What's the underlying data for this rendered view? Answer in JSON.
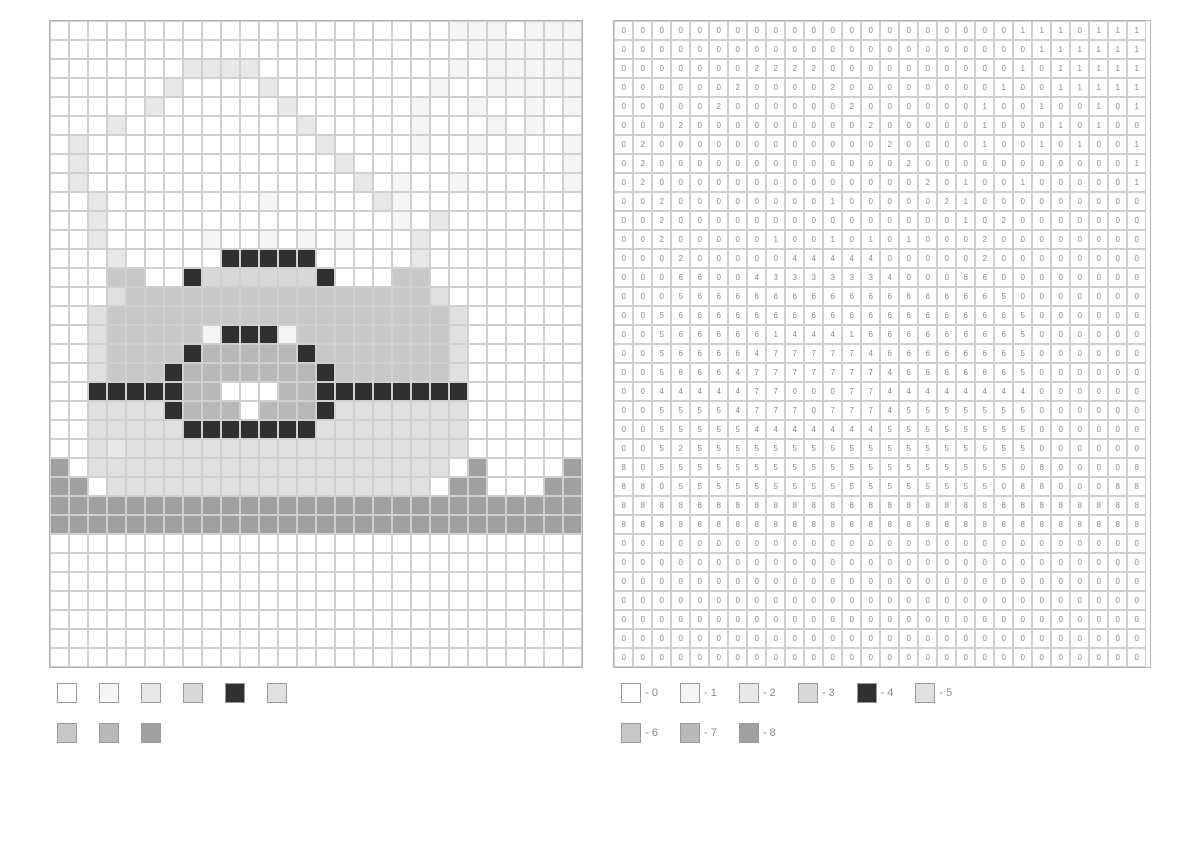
{
  "grid_config": {
    "cols": 28,
    "rows": 34,
    "cell_size": 19,
    "border_color": "#d0d0d0",
    "outer_border_color": "#b0b0b0"
  },
  "palette": {
    "0": "#ffffff",
    "1": "#f5f5f5",
    "2": "#e8e8e8",
    "3": "#d8d8d8",
    "4": "#303030",
    "5": "#e0e0e0",
    "6": "#c8c8c8",
    "7": "#b8b8b8",
    "8": "#a0a0a0"
  },
  "number_grid": [
    [
      0,
      0,
      0,
      0,
      0,
      0,
      0,
      0,
      0,
      0,
      0,
      0,
      0,
      0,
      0,
      0,
      0,
      0,
      0,
      0,
      0,
      1,
      1,
      1,
      0,
      1,
      1,
      1
    ],
    [
      0,
      0,
      0,
      0,
      0,
      0,
      0,
      0,
      0,
      0,
      0,
      0,
      0,
      0,
      0,
      0,
      0,
      0,
      0,
      0,
      0,
      0,
      1,
      1,
      1,
      1,
      1,
      1
    ],
    [
      0,
      0,
      0,
      0,
      0,
      0,
      0,
      2,
      2,
      2,
      2,
      0,
      0,
      0,
      0,
      0,
      0,
      0,
      0,
      0,
      0,
      1,
      0,
      1,
      1,
      1,
      1,
      1
    ],
    [
      0,
      0,
      0,
      0,
      0,
      0,
      2,
      0,
      0,
      0,
      0,
      2,
      0,
      0,
      0,
      0,
      0,
      0,
      0,
      0,
      1,
      0,
      0,
      1,
      1,
      1,
      1,
      1
    ],
    [
      0,
      0,
      0,
      0,
      0,
      2,
      0,
      0,
      0,
      0,
      0,
      0,
      2,
      0,
      0,
      0,
      0,
      0,
      0,
      1,
      0,
      0,
      1,
      0,
      0,
      1,
      0,
      1
    ],
    [
      0,
      0,
      0,
      2,
      0,
      0,
      0,
      0,
      0,
      0,
      0,
      0,
      0,
      2,
      0,
      0,
      0,
      0,
      0,
      1,
      0,
      0,
      0,
      1,
      0,
      1,
      0,
      0
    ],
    [
      0,
      2,
      0,
      0,
      0,
      0,
      0,
      0,
      0,
      0,
      0,
      0,
      0,
      0,
      2,
      0,
      0,
      0,
      0,
      1,
      0,
      0,
      1,
      0,
      1,
      0,
      0,
      1
    ],
    [
      0,
      2,
      0,
      0,
      0,
      0,
      0,
      0,
      0,
      0,
      0,
      0,
      0,
      0,
      0,
      2,
      0,
      0,
      0,
      0,
      0,
      0,
      0,
      0,
      0,
      0,
      0,
      1
    ],
    [
      0,
      2,
      0,
      0,
      0,
      0,
      0,
      0,
      0,
      0,
      0,
      0,
      0,
      0,
      0,
      0,
      2,
      0,
      1,
      0,
      0,
      1,
      0,
      0,
      0,
      0,
      0,
      1
    ],
    [
      0,
      0,
      2,
      0,
      0,
      0,
      0,
      0,
      0,
      0,
      0,
      1,
      0,
      0,
      0,
      0,
      0,
      2,
      1,
      0,
      0,
      0,
      0,
      0,
      0,
      0,
      0,
      0
    ],
    [
      0,
      0,
      2,
      0,
      0,
      0,
      0,
      0,
      0,
      0,
      0,
      0,
      0,
      0,
      0,
      0,
      0,
      0,
      1,
      0,
      2,
      0,
      0,
      0,
      0,
      0,
      0,
      0
    ],
    [
      0,
      0,
      2,
      0,
      0,
      0,
      0,
      0,
      1,
      0,
      0,
      1,
      0,
      1,
      0,
      1,
      0,
      0,
      0,
      2,
      0,
      0,
      0,
      0,
      0,
      0,
      0,
      0
    ],
    [
      0,
      0,
      0,
      2,
      0,
      0,
      0,
      0,
      0,
      4,
      4,
      4,
      4,
      4,
      0,
      0,
      0,
      0,
      0,
      2,
      0,
      0,
      0,
      0,
      0,
      0,
      0,
      0
    ],
    [
      0,
      0,
      0,
      6,
      6,
      0,
      0,
      4,
      3,
      3,
      3,
      3,
      3,
      3,
      4,
      0,
      0,
      0,
      6,
      6,
      0,
      0,
      0,
      0,
      0,
      0,
      0,
      0
    ],
    [
      0,
      0,
      0,
      5,
      6,
      6,
      6,
      6,
      6,
      6,
      6,
      6,
      6,
      6,
      6,
      6,
      6,
      6,
      6,
      6,
      5,
      0,
      0,
      0,
      0,
      0,
      0,
      0
    ],
    [
      0,
      0,
      5,
      6,
      6,
      6,
      6,
      6,
      6,
      6,
      6,
      6,
      6,
      6,
      6,
      6,
      6,
      6,
      6,
      6,
      6,
      5,
      0,
      0,
      0,
      0,
      0,
      0
    ],
    [
      0,
      0,
      5,
      6,
      6,
      6,
      6,
      6,
      1,
      4,
      4,
      4,
      1,
      6,
      6,
      6,
      6,
      6,
      6,
      6,
      6,
      5,
      0,
      0,
      0,
      0,
      0,
      0
    ],
    [
      0,
      0,
      5,
      6,
      6,
      6,
      6,
      4,
      7,
      7,
      7,
      7,
      7,
      4,
      6,
      6,
      6,
      6,
      6,
      6,
      6,
      5,
      0,
      0,
      0,
      0,
      0,
      0
    ],
    [
      0,
      0,
      5,
      6,
      6,
      6,
      4,
      7,
      7,
      7,
      7,
      7,
      7,
      7,
      4,
      6,
      6,
      6,
      6,
      6,
      6,
      5,
      0,
      0,
      0,
      0,
      0,
      0
    ],
    [
      0,
      0,
      4,
      4,
      4,
      4,
      4,
      7,
      7,
      0,
      0,
      0,
      7,
      7,
      4,
      4,
      4,
      4,
      4,
      4,
      4,
      4,
      0,
      0,
      0,
      0,
      0,
      0
    ],
    [
      0,
      0,
      5,
      5,
      5,
      5,
      4,
      7,
      7,
      7,
      0,
      7,
      7,
      7,
      4,
      5,
      5,
      5,
      5,
      5,
      5,
      5,
      0,
      0,
      0,
      0,
      0,
      0
    ],
    [
      0,
      0,
      5,
      5,
      5,
      5,
      5,
      4,
      4,
      4,
      4,
      4,
      4,
      4,
      5,
      5,
      5,
      5,
      5,
      5,
      5,
      5,
      0,
      0,
      0,
      0,
      0,
      0
    ],
    [
      0,
      0,
      5,
      2,
      5,
      5,
      5,
      5,
      5,
      5,
      5,
      5,
      5,
      5,
      5,
      5,
      5,
      5,
      5,
      5,
      5,
      5,
      0,
      0,
      0,
      0,
      0,
      0
    ],
    [
      8,
      0,
      5,
      5,
      5,
      5,
      5,
      5,
      5,
      5,
      5,
      5,
      5,
      5,
      5,
      5,
      5,
      5,
      5,
      5,
      5,
      0,
      8,
      0,
      0,
      0,
      0,
      8
    ],
    [
      8,
      8,
      0,
      5,
      5,
      5,
      5,
      5,
      5,
      5,
      5,
      5,
      5,
      5,
      5,
      5,
      5,
      5,
      5,
      5,
      0,
      8,
      8,
      0,
      0,
      0,
      8,
      8
    ],
    [
      8,
      8,
      8,
      8,
      8,
      8,
      8,
      8,
      8,
      8,
      8,
      8,
      8,
      8,
      8,
      8,
      8,
      8,
      8,
      8,
      8,
      8,
      8,
      8,
      8,
      8,
      8,
      8
    ],
    [
      8,
      8,
      8,
      8,
      8,
      8,
      8,
      8,
      8,
      8,
      8,
      8,
      8,
      8,
      8,
      8,
      8,
      8,
      8,
      8,
      8,
      8,
      8,
      8,
      8,
      8,
      8,
      8
    ],
    [
      0,
      0,
      0,
      0,
      0,
      0,
      0,
      0,
      0,
      0,
      0,
      0,
      0,
      0,
      0,
      0,
      0,
      0,
      0,
      0,
      0,
      0,
      0,
      0,
      0,
      0,
      0,
      0
    ],
    [
      0,
      0,
      0,
      0,
      0,
      0,
      0,
      0,
      0,
      0,
      0,
      0,
      0,
      0,
      0,
      0,
      0,
      0,
      0,
      0,
      0,
      0,
      0,
      0,
      0,
      0,
      0,
      0
    ],
    [
      0,
      0,
      0,
      0,
      0,
      0,
      0,
      0,
      0,
      0,
      0,
      0,
      0,
      0,
      0,
      0,
      0,
      0,
      0,
      0,
      0,
      0,
      0,
      0,
      0,
      0,
      0,
      0
    ],
    [
      0,
      0,
      0,
      0,
      0,
      0,
      0,
      0,
      0,
      0,
      0,
      0,
      0,
      0,
      0,
      0,
      0,
      0,
      0,
      0,
      0,
      0,
      0,
      0,
      0,
      0,
      0,
      0
    ],
    [
      0,
      0,
      0,
      0,
      0,
      0,
      0,
      0,
      0,
      0,
      0,
      0,
      0,
      0,
      0,
      0,
      0,
      0,
      0,
      0,
      0,
      0,
      0,
      0,
      0,
      0,
      0,
      0
    ],
    [
      0,
      0,
      0,
      0,
      0,
      0,
      0,
      0,
      0,
      0,
      0,
      0,
      0,
      0,
      0,
      0,
      0,
      0,
      0,
      0,
      0,
      0,
      0,
      0,
      0,
      0,
      0,
      0
    ],
    [
      0,
      0,
      0,
      0,
      0,
      0,
      0,
      0,
      0,
      0,
      0,
      0,
      0,
      0,
      0,
      0,
      0,
      0,
      0,
      0,
      0,
      0,
      0,
      0,
      0,
      0,
      0,
      0
    ]
  ],
  "legend_left": [
    {
      "color": "#ffffff"
    },
    {
      "color": "#f5f5f5"
    },
    {
      "color": "#e8e8e8"
    },
    {
      "color": "#d8d8d8"
    },
    {
      "color": "#303030"
    },
    {
      "color": "#e0e0e0"
    },
    {
      "color": "#c8c8c8"
    },
    {
      "color": "#b8b8b8"
    },
    {
      "color": "#a0a0a0"
    }
  ],
  "legend_right": [
    {
      "color": "#ffffff",
      "label": "- 0"
    },
    {
      "color": "#f5f5f5",
      "label": "- 1"
    },
    {
      "color": "#e8e8e8",
      "label": "- 2"
    },
    {
      "color": "#d8d8d8",
      "label": "- 3"
    },
    {
      "color": "#303030",
      "label": "- 4"
    },
    {
      "color": "#e0e0e0",
      "label": "- 5"
    },
    {
      "color": "#c8c8c8",
      "label": "- 6"
    },
    {
      "color": "#b8b8b8",
      "label": "- 7"
    },
    {
      "color": "#a0a0a0",
      "label": "- 8"
    }
  ]
}
